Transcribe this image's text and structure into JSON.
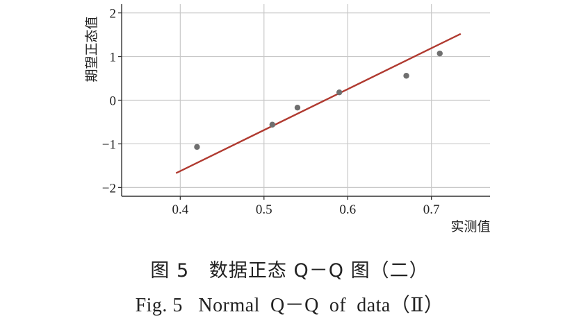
{
  "chart_data": {
    "type": "scatter",
    "xlabel": "实测值",
    "ylabel": "期望正态值",
    "xlim": [
      0.33,
      0.77
    ],
    "ylim": [
      -2.2,
      2.2
    ],
    "xticks": [
      0.4,
      0.5,
      0.6,
      0.7
    ],
    "yticks": [
      -2,
      -1,
      0,
      1,
      2
    ],
    "xtick_labels": [
      "0.4",
      "0.5",
      "0.6",
      "0.7"
    ],
    "ytick_labels": [
      "−2",
      "−1",
      "0",
      "1",
      "2"
    ],
    "grid": true,
    "points": [
      {
        "x": 0.42,
        "y": -1.07
      },
      {
        "x": 0.51,
        "y": -0.56
      },
      {
        "x": 0.54,
        "y": -0.17
      },
      {
        "x": 0.59,
        "y": 0.18
      },
      {
        "x": 0.67,
        "y": 0.56
      },
      {
        "x": 0.71,
        "y": 1.07
      }
    ],
    "reference_line": {
      "x": [
        0.395,
        0.735
      ],
      "y": [
        -1.67,
        1.52
      ]
    },
    "colors": {
      "points": "#6f6f6f",
      "line": "#b03a30",
      "grid": "#c8c8c8",
      "axis": "#333333"
    }
  },
  "caption": {
    "zh": "图 5   数据正态 Q－Q 图（二）",
    "en": "Fig. 5   Normal  Q－Q  of  data（Ⅱ）"
  }
}
